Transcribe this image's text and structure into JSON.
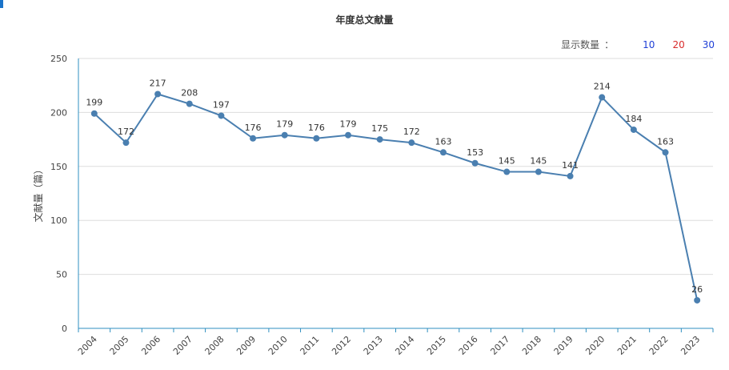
{
  "chart_data": {
    "type": "line",
    "title": "年度总文献量",
    "xlabel": "",
    "ylabel": "文献量（篇）",
    "x": [
      "2004",
      "2005",
      "2006",
      "2007",
      "2008",
      "2009",
      "2010",
      "2011",
      "2012",
      "2013",
      "2014",
      "2015",
      "2016",
      "2017",
      "2018",
      "2019",
      "2020",
      "2021",
      "2022",
      "2023"
    ],
    "values": [
      199,
      172,
      217,
      208,
      197,
      176,
      179,
      176,
      179,
      175,
      172,
      163,
      153,
      145,
      145,
      141,
      214,
      184,
      163,
      26
    ],
    "ylim": [
      0,
      250
    ],
    "yticks": [
      0,
      50,
      100,
      150,
      200,
      250
    ],
    "grid": "horizontal",
    "line_color": "#4a7fb0",
    "axis_color": "#2f8fc0"
  },
  "display_count": {
    "label": "显示数量",
    "separator": "：",
    "options": [
      {
        "label": "10",
        "color": "#1f3fd6"
      },
      {
        "label": "20",
        "color": "#d92b2b"
      },
      {
        "label": "30",
        "color": "#1f3fd6"
      }
    ]
  }
}
